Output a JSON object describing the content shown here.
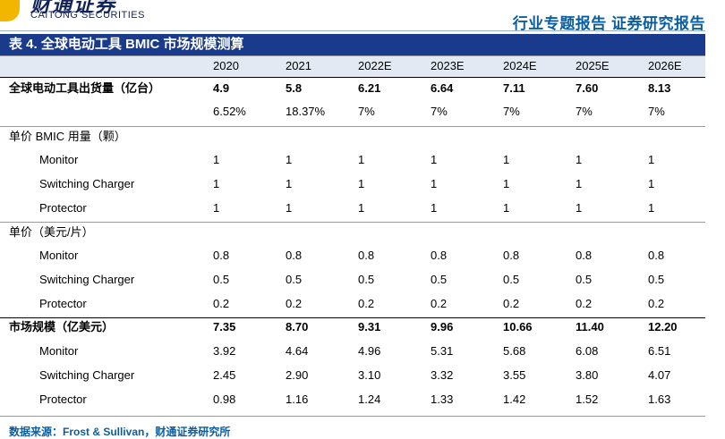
{
  "header": {
    "brand_cn": "财通证券",
    "brand_en": "CAITONG SECURITIES",
    "report_type": "行业专题报告  证券研究报告"
  },
  "table": {
    "title": "表 4. 全球电动工具 BMIC 市场规模测算",
    "columns": [
      "2020",
      "2021",
      "2022E",
      "2023E",
      "2024E",
      "2025E",
      "2026E"
    ],
    "rows": [
      {
        "label": "全球电动工具出货量（亿台）",
        "values": [
          "4.9",
          "5.8",
          "6.21",
          "6.64",
          "7.11",
          "7.60",
          "8.13"
        ],
        "bold": true
      },
      {
        "label": "",
        "values": [
          "6.52%",
          "18.37%",
          "7%",
          "7%",
          "7%",
          "7%",
          "7%"
        ]
      },
      {
        "label": "单价 BMIC 用量（颗）",
        "values": [
          "",
          "",
          "",
          "",
          "",
          "",
          ""
        ]
      },
      {
        "label": "Monitor",
        "values": [
          "1",
          "1",
          "1",
          "1",
          "1",
          "1",
          "1"
        ],
        "indent": true
      },
      {
        "label": "Switching Charger",
        "values": [
          "1",
          "1",
          "1",
          "1",
          "1",
          "1",
          "1"
        ],
        "indent": true
      },
      {
        "label": "Protector",
        "values": [
          "1",
          "1",
          "1",
          "1",
          "1",
          "1",
          "1"
        ],
        "indent": true
      },
      {
        "label": "单价（美元/片）",
        "values": [
          "",
          "",
          "",
          "",
          "",
          "",
          ""
        ]
      },
      {
        "label": "Monitor",
        "values": [
          "0.8",
          "0.8",
          "0.8",
          "0.8",
          "0.8",
          "0.8",
          "0.8"
        ],
        "indent": true
      },
      {
        "label": "Switching Charger",
        "values": [
          "0.5",
          "0.5",
          "0.5",
          "0.5",
          "0.5",
          "0.5",
          "0.5"
        ],
        "indent": true
      },
      {
        "label": "Protector",
        "values": [
          "0.2",
          "0.2",
          "0.2",
          "0.2",
          "0.2",
          "0.2",
          "0.2"
        ],
        "indent": true
      },
      {
        "label": "市场规模（亿美元）",
        "values": [
          "7.35",
          "8.70",
          "9.31",
          "9.96",
          "10.66",
          "11.40",
          "12.20"
        ],
        "bold": true
      },
      {
        "label": "Monitor",
        "values": [
          "3.92",
          "4.64",
          "4.96",
          "5.31",
          "5.68",
          "6.08",
          "6.51"
        ],
        "indent": true
      },
      {
        "label": "Switching Charger",
        "values": [
          "2.45",
          "2.90",
          "3.10",
          "3.32",
          "3.55",
          "3.80",
          "4.07"
        ],
        "indent": true
      },
      {
        "label": "Protector",
        "values": [
          "0.98",
          "1.16",
          "1.24",
          "1.33",
          "1.42",
          "1.52",
          "1.63"
        ],
        "indent": true
      }
    ]
  },
  "footer": {
    "source": "数据来源：Frost & Sullivan，财通证券研究所"
  },
  "colors": {
    "title_band": "#1a3a8c",
    "header_band": "#e3e9f3",
    "accent_text": "#0a5ea0",
    "brand_navy": "#12235a",
    "brand_gold": "#f2b600"
  }
}
